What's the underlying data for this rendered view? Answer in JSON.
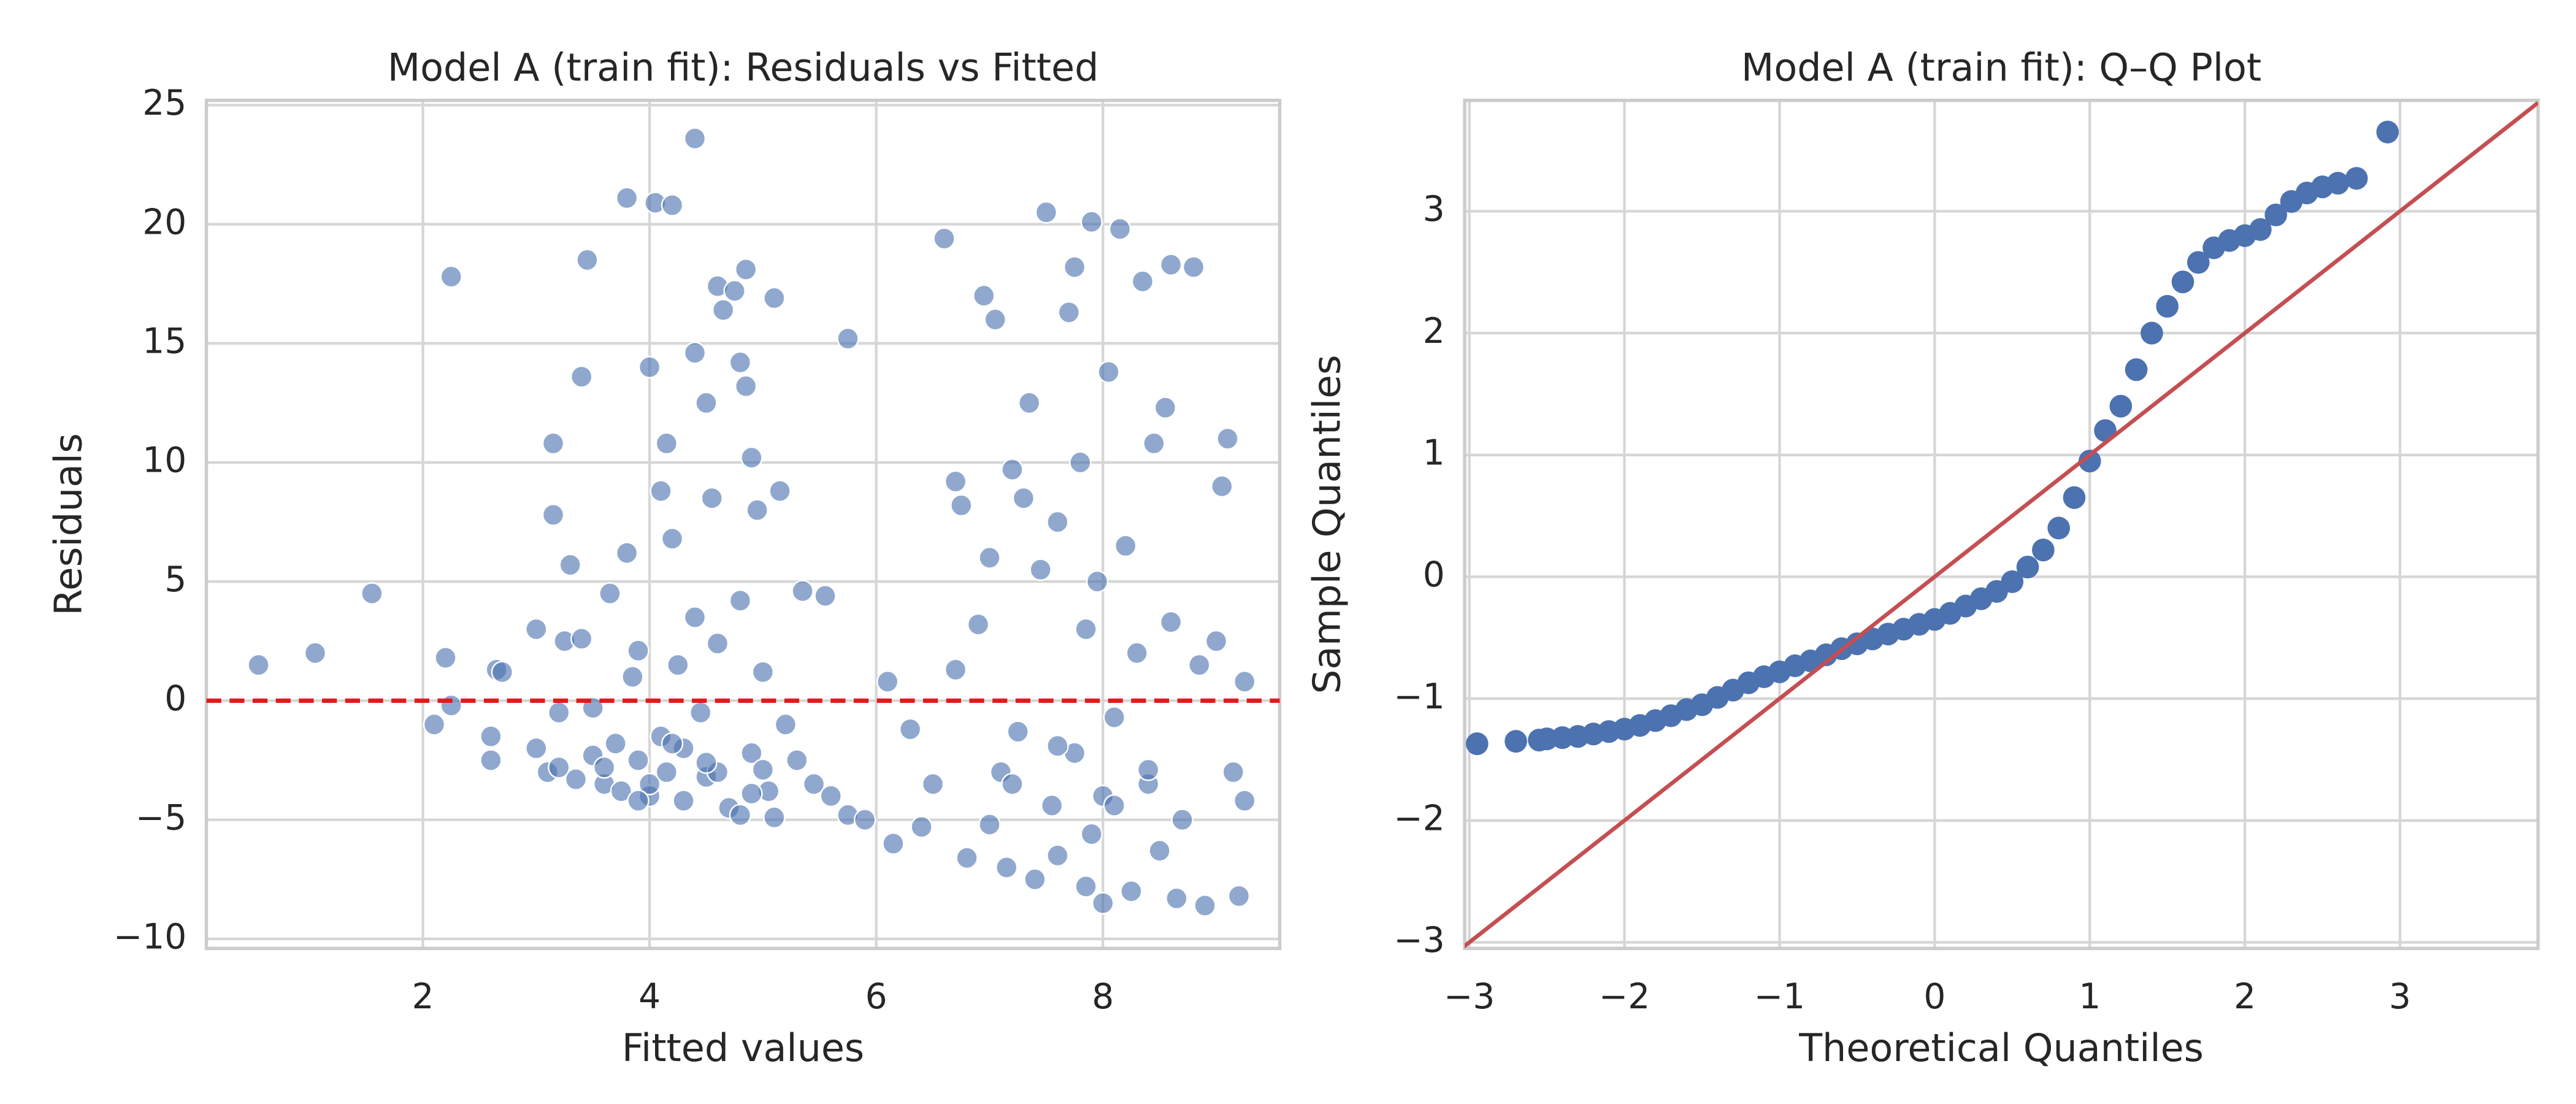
{
  "chart_data": [
    {
      "type": "scatter",
      "title": "Model A (train fit): Residuals vs Fitted",
      "xlabel": "Fitted values",
      "ylabel": "Residuals",
      "color": "#4c72b0",
      "grid": true,
      "xlim": [
        0.09,
        9.56
      ],
      "ylim": [
        -10.4,
        25.2
      ],
      "xticks": [
        2,
        4,
        6,
        8
      ],
      "yticks": [
        {
          "value": -10,
          "label": "−10"
        },
        {
          "value": -5,
          "label": "−5"
        },
        0,
        5,
        10,
        15,
        20,
        25
      ],
      "hline": {
        "value": 0,
        "color": "#e31a1c"
      },
      "x": [
        0.55,
        1.05,
        1.55,
        2.1,
        2.2,
        2.25,
        2.25,
        2.6,
        2.6,
        2.65,
        2.7,
        3.0,
        3.0,
        3.1,
        3.15,
        3.15,
        3.2,
        3.2,
        3.25,
        3.3,
        3.35,
        3.4,
        3.45,
        3.4,
        3.5,
        3.5,
        3.6,
        3.65,
        3.7,
        3.75,
        3.8,
        3.8,
        3.85,
        3.9,
        3.9,
        4.0,
        4.0,
        4.05,
        4.1,
        4.1,
        4.15,
        4.15,
        4.2,
        4.2,
        4.25,
        4.3,
        4.3,
        4.4,
        4.4,
        4.4,
        4.45,
        4.5,
        4.5,
        4.55,
        4.6,
        4.6,
        4.65,
        4.7,
        4.75,
        4.8,
        4.8,
        4.85,
        4.85,
        4.9,
        4.9,
        4.95,
        5.0,
        5.05,
        5.1,
        5.1,
        5.15,
        5.2,
        5.3,
        5.35,
        5.45,
        5.55,
        5.6,
        5.75,
        5.75,
        5.9,
        6.1,
        6.15,
        6.3,
        6.4,
        6.5,
        6.6,
        6.7,
        6.7,
        6.75,
        6.8,
        6.9,
        6.95,
        7.0,
        7.0,
        7.05,
        7.1,
        7.15,
        7.2,
        7.25,
        7.3,
        7.35,
        7.4,
        7.45,
        7.5,
        7.55,
        7.6,
        7.6,
        7.7,
        7.75,
        7.75,
        7.8,
        7.85,
        7.85,
        7.9,
        7.95,
        8.0,
        8.05,
        8.1,
        8.15,
        8.2,
        8.25,
        8.3,
        8.35,
        8.4,
        8.45,
        8.5,
        8.55,
        8.6,
        8.6,
        8.65,
        8.7,
        8.8,
        8.85,
        8.9,
        9.0,
        9.05,
        9.1,
        9.15,
        9.2,
        9.25,
        9.25,
        8.0,
        7.2,
        4.0,
        4.6,
        3.9,
        4.8,
        3.6,
        4.2,
        4.5,
        4.9,
        5.0,
        7.6,
        7.9,
        8.1,
        8.4
      ],
      "y": [
        1.5,
        2,
        4.5,
        -1,
        1.8,
        17.8,
        -0.2,
        -1.5,
        -2.5,
        1.3,
        1.2,
        3,
        -2,
        -3,
        10.8,
        7.8,
        -0.5,
        -2.8,
        2.5,
        5.7,
        -3.3,
        13.6,
        18.5,
        2.6,
        -0.3,
        -2.3,
        -3.5,
        4.5,
        -1.8,
        -3.8,
        6.2,
        21.1,
        1,
        2.1,
        -2.5,
        14,
        -4,
        20.9,
        8.8,
        -1.5,
        10.8,
        -3,
        20.8,
        6.8,
        1.5,
        -2,
        -4.2,
        23.6,
        14.6,
        3.5,
        -0.5,
        -3.2,
        12.5,
        8.5,
        17.4,
        2.4,
        16.4,
        -4.5,
        17.2,
        14.2,
        4.2,
        13.2,
        18.1,
        10.2,
        -2.2,
        8,
        1.2,
        -3.8,
        16.9,
        -4.9,
        8.8,
        -1,
        -2.5,
        4.6,
        -3.5,
        4.4,
        -4,
        15.2,
        -4.8,
        -5,
        0.8,
        -6,
        -1.2,
        -5.3,
        -3.5,
        19.4,
        1.3,
        9.2,
        8.2,
        -6.6,
        3.2,
        17,
        -5.2,
        6,
        16,
        -3,
        -7,
        9.7,
        -1.3,
        8.5,
        12.5,
        -7.5,
        5.5,
        20.5,
        -4.4,
        7.5,
        -6.5,
        16.3,
        18.2,
        -2.2,
        10,
        3,
        -7.8,
        20.1,
        5,
        -4,
        13.8,
        -0.7,
        19.8,
        6.5,
        -8,
        2,
        17.6,
        -3.5,
        10.8,
        -6.3,
        12.3,
        18.3,
        3.3,
        -8.3,
        -5,
        18.2,
        1.5,
        -8.6,
        2.5,
        9,
        11,
        -3,
        -8.2,
        0.8,
        -4.2,
        -8.5,
        -3.5,
        -3.5,
        -3,
        -4.2,
        -4.8,
        -2.8,
        -1.8,
        -2.6,
        -3.9,
        -2.9,
        -1.9,
        -5.6,
        -4.4,
        -2.9
      ]
    },
    {
      "type": "qq",
      "title": "Model A (train fit): Q–Q Plot",
      "xlabel": "Theoretical Quantiles",
      "ylabel": "Sample Quantiles",
      "color": "#4c72b0",
      "grid": true,
      "xlim": [
        -3.03,
        3.89
      ],
      "ylim": [
        -3.05,
        3.91
      ],
      "xticks": [
        {
          "value": -3,
          "label": "−3"
        },
        {
          "value": -2,
          "label": "−2"
        },
        {
          "value": -1,
          "label": "−1"
        },
        0,
        1,
        2,
        3
      ],
      "yticks": [
        {
          "value": -3,
          "label": "−3"
        },
        {
          "value": -2,
          "label": "−2"
        },
        {
          "value": -1,
          "label": "−1"
        },
        0,
        1,
        2,
        3
      ],
      "x": [
        -2.95,
        -2.7,
        -2.55,
        -2.5,
        -2.4,
        -2.3,
        -2.2,
        -2.1,
        -2.0,
        -1.9,
        -1.8,
        -1.7,
        -1.6,
        -1.5,
        -1.4,
        -1.3,
        -1.2,
        -1.1,
        -1.0,
        -0.9,
        -0.8,
        -0.7,
        -0.6,
        -0.5,
        -0.4,
        -0.3,
        -0.2,
        -0.1,
        0.0,
        0.1,
        0.2,
        0.3,
        0.4,
        0.5,
        0.6,
        0.7,
        0.8,
        0.9,
        1.0,
        1.1,
        1.2,
        1.3,
        1.4,
        1.5,
        1.6,
        1.7,
        1.8,
        1.9,
        2.0,
        2.1,
        2.2,
        2.3,
        2.4,
        2.5,
        2.6,
        2.72,
        2.92
      ],
      "y": [
        -1.37,
        -1.35,
        -1.34,
        -1.33,
        -1.32,
        -1.31,
        -1.29,
        -1.27,
        -1.25,
        -1.22,
        -1.18,
        -1.14,
        -1.09,
        -1.05,
        -0.99,
        -0.93,
        -0.87,
        -0.82,
        -0.78,
        -0.73,
        -0.69,
        -0.64,
        -0.59,
        -0.55,
        -0.51,
        -0.47,
        -0.43,
        -0.39,
        -0.35,
        -0.3,
        -0.24,
        -0.18,
        -0.12,
        -0.04,
        0.08,
        0.22,
        0.4,
        0.65,
        0.95,
        1.2,
        1.4,
        1.7,
        2.0,
        2.22,
        2.42,
        2.58,
        2.7,
        2.76,
        2.8,
        2.85,
        2.97,
        3.08,
        3.15,
        3.2,
        3.23,
        3.27,
        3.65
      ],
      "line": {
        "x": [
          -3.05,
          3.89
        ],
        "y": [
          -3.05,
          3.89
        ],
        "color": "#c44e52"
      }
    }
  ]
}
